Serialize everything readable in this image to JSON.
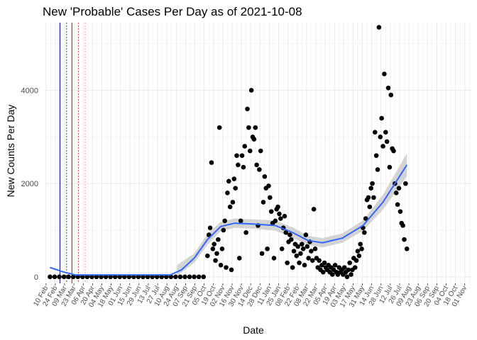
{
  "chart_data": {
    "type": "scatter",
    "title": "New 'Probable' Cases Per Day as of 2021-10-08",
    "xlabel": "Date",
    "ylabel": "New Counts Per Day",
    "xlim": [
      "2020-02-07",
      "2021-11-12"
    ],
    "ylim": [
      -140,
      5450
    ],
    "y_ticks": [
      0,
      2000,
      4000
    ],
    "x_ticks": [
      {
        "date": "2020-02-10",
        "label": "10 Feb"
      },
      {
        "date": "2020-02-24",
        "label": "24 Feb"
      },
      {
        "date": "2020-03-09",
        "label": "09 Mar"
      },
      {
        "date": "2020-03-23",
        "label": "23 Mar"
      },
      {
        "date": "2020-04-06",
        "label": "06 Apr"
      },
      {
        "date": "2020-04-20",
        "label": "20 Apr"
      },
      {
        "date": "2020-05-04",
        "label": "04 May"
      },
      {
        "date": "2020-05-18",
        "label": "18 May"
      },
      {
        "date": "2020-06-01",
        "label": "01 Jun"
      },
      {
        "date": "2020-06-15",
        "label": "15 Jun"
      },
      {
        "date": "2020-06-29",
        "label": "29 Jun"
      },
      {
        "date": "2020-07-13",
        "label": "13 Jul"
      },
      {
        "date": "2020-07-27",
        "label": "27 Jul"
      },
      {
        "date": "2020-08-10",
        "label": "10 Aug"
      },
      {
        "date": "2020-08-24",
        "label": "24 Aug"
      },
      {
        "date": "2020-09-07",
        "label": "07 Sep"
      },
      {
        "date": "2020-09-21",
        "label": "21 Sep"
      },
      {
        "date": "2020-10-05",
        "label": "05 Oct"
      },
      {
        "date": "2020-10-19",
        "label": "19 Oct"
      },
      {
        "date": "2020-11-02",
        "label": "02 Nov"
      },
      {
        "date": "2020-11-16",
        "label": "16 Nov"
      },
      {
        "date": "2020-11-30",
        "label": "30 Nov"
      },
      {
        "date": "2020-12-14",
        "label": "14 Dec"
      },
      {
        "date": "2020-12-28",
        "label": "28 Dec"
      },
      {
        "date": "2021-01-11",
        "label": "11 Jan"
      },
      {
        "date": "2021-01-25",
        "label": "25 Jan"
      },
      {
        "date": "2021-02-08",
        "label": "08 Feb"
      },
      {
        "date": "2021-02-22",
        "label": "22 Feb"
      },
      {
        "date": "2021-03-08",
        "label": "08 Mar"
      },
      {
        "date": "2021-03-22",
        "label": "22 Mar"
      },
      {
        "date": "2021-04-05",
        "label": "05 Apr"
      },
      {
        "date": "2021-04-19",
        "label": "19 Apr"
      },
      {
        "date": "2021-05-03",
        "label": "03 May"
      },
      {
        "date": "2021-05-17",
        "label": "17 May"
      },
      {
        "date": "2021-05-31",
        "label": "31 May"
      },
      {
        "date": "2021-06-14",
        "label": "14 Jun"
      },
      {
        "date": "2021-06-28",
        "label": "28 Jun"
      },
      {
        "date": "2021-07-12",
        "label": "12 Jul"
      },
      {
        "date": "2021-07-26",
        "label": "26 Jul"
      },
      {
        "date": "2021-08-09",
        "label": "09 Aug"
      },
      {
        "date": "2021-08-23",
        "label": "23 Aug"
      },
      {
        "date": "2021-09-06",
        "label": "06 Sep"
      },
      {
        "date": "2021-09-20",
        "label": "20 Sep"
      },
      {
        "date": "2021-10-04",
        "label": "04 Oct"
      },
      {
        "date": "2021-10-18",
        "label": "18 Oct"
      },
      {
        "date": "2021-11-01",
        "label": "01 Nov"
      }
    ],
    "vertical_lines": [
      {
        "date": "2020-03-02",
        "color": "#00008b",
        "style": "solid"
      },
      {
        "date": "2020-03-12",
        "color": "#00008b",
        "style": "dotted"
      },
      {
        "date": "2020-03-20",
        "color": "#cc0000",
        "style": "solid"
      },
      {
        "date": "2020-03-30",
        "color": "#cc0000",
        "style": "dotted"
      },
      {
        "date": "2020-04-09",
        "color": "#f08080",
        "style": "dotted"
      }
    ],
    "points": [
      [
        "2020-02-16",
        0
      ],
      [
        "2020-02-23",
        0
      ],
      [
        "2020-03-01",
        0
      ],
      [
        "2020-03-08",
        0
      ],
      [
        "2020-03-15",
        0
      ],
      [
        "2020-03-22",
        0
      ],
      [
        "2020-03-29",
        0
      ],
      [
        "2020-04-05",
        0
      ],
      [
        "2020-04-12",
        0
      ],
      [
        "2020-04-19",
        0
      ],
      [
        "2020-04-26",
        0
      ],
      [
        "2020-05-03",
        0
      ],
      [
        "2020-05-10",
        0
      ],
      [
        "2020-05-17",
        0
      ],
      [
        "2020-05-24",
        0
      ],
      [
        "2020-05-31",
        0
      ],
      [
        "2020-06-07",
        0
      ],
      [
        "2020-06-14",
        0
      ],
      [
        "2020-06-21",
        0
      ],
      [
        "2020-06-28",
        0
      ],
      [
        "2020-07-05",
        0
      ],
      [
        "2020-07-12",
        0
      ],
      [
        "2020-07-19",
        0
      ],
      [
        "2020-07-26",
        0
      ],
      [
        "2020-08-02",
        0
      ],
      [
        "2020-08-09",
        0
      ],
      [
        "2020-08-16",
        0
      ],
      [
        "2020-08-23",
        0
      ],
      [
        "2020-08-30",
        0
      ],
      [
        "2020-09-06",
        0
      ],
      [
        "2020-09-13",
        0
      ],
      [
        "2020-09-20",
        0
      ],
      [
        "2020-09-27",
        0
      ],
      [
        "2020-10-04",
        0
      ],
      [
        "2020-10-10",
        450
      ],
      [
        "2020-10-12",
        900
      ],
      [
        "2020-10-14",
        1050
      ],
      [
        "2020-10-16",
        2450
      ],
      [
        "2020-10-18",
        600
      ],
      [
        "2020-10-20",
        700
      ],
      [
        "2020-10-22",
        350
      ],
      [
        "2020-10-24",
        500
      ],
      [
        "2020-10-26",
        800
      ],
      [
        "2020-10-28",
        3200
      ],
      [
        "2020-10-30",
        250
      ],
      [
        "2020-11-01",
        600
      ],
      [
        "2020-11-03",
        1000
      ],
      [
        "2020-11-05",
        1200
      ],
      [
        "2020-11-07",
        200
      ],
      [
        "2020-11-09",
        1800
      ],
      [
        "2020-11-11",
        2050
      ],
      [
        "2020-11-13",
        1500
      ],
      [
        "2020-11-15",
        150
      ],
      [
        "2020-11-17",
        1600
      ],
      [
        "2020-11-19",
        2100
      ],
      [
        "2020-11-21",
        1900
      ],
      [
        "2020-11-23",
        2600
      ],
      [
        "2020-11-25",
        2400
      ],
      [
        "2020-11-27",
        400
      ],
      [
        "2020-11-29",
        1200
      ],
      [
        "2020-12-01",
        2600
      ],
      [
        "2020-12-03",
        2350
      ],
      [
        "2020-12-05",
        2800
      ],
      [
        "2020-12-07",
        950
      ],
      [
        "2020-12-09",
        3600
      ],
      [
        "2020-12-11",
        3200
      ],
      [
        "2020-12-13",
        2700
      ],
      [
        "2020-12-15",
        4000
      ],
      [
        "2020-12-17",
        3000
      ],
      [
        "2020-12-19",
        2950
      ],
      [
        "2020-12-21",
        3200
      ],
      [
        "2020-12-23",
        2400
      ],
      [
        "2020-12-25",
        1100
      ],
      [
        "2020-12-27",
        2300
      ],
      [
        "2020-12-29",
        2700
      ],
      [
        "2020-12-31",
        500
      ],
      [
        "2021-01-02",
        1600
      ],
      [
        "2021-01-04",
        2150
      ],
      [
        "2021-01-06",
        1900
      ],
      [
        "2021-01-08",
        600
      ],
      [
        "2021-01-10",
        1950
      ],
      [
        "2021-01-12",
        1700
      ],
      [
        "2021-01-14",
        1400
      ],
      [
        "2021-01-16",
        1150
      ],
      [
        "2021-01-18",
        400
      ],
      [
        "2021-01-20",
        1200
      ],
      [
        "2021-01-22",
        1450
      ],
      [
        "2021-01-24",
        1500
      ],
      [
        "2021-01-26",
        1350
      ],
      [
        "2021-01-28",
        1250
      ],
      [
        "2021-01-30",
        600
      ],
      [
        "2021-02-01",
        1050
      ],
      [
        "2021-02-03",
        1300
      ],
      [
        "2021-02-05",
        950
      ],
      [
        "2021-02-07",
        300
      ],
      [
        "2021-02-09",
        750
      ],
      [
        "2021-02-11",
        900
      ],
      [
        "2021-02-13",
        800
      ],
      [
        "2021-02-15",
        200
      ],
      [
        "2021-02-17",
        550
      ],
      [
        "2021-02-19",
        700
      ],
      [
        "2021-02-21",
        450
      ],
      [
        "2021-02-23",
        650
      ],
      [
        "2021-02-25",
        300
      ],
      [
        "2021-02-27",
        500
      ],
      [
        "2021-03-01",
        700
      ],
      [
        "2021-03-03",
        600
      ],
      [
        "2021-03-05",
        250
      ],
      [
        "2021-03-07",
        900
      ],
      [
        "2021-03-09",
        650
      ],
      [
        "2021-03-11",
        400
      ],
      [
        "2021-03-13",
        750
      ],
      [
        "2021-03-15",
        550
      ],
      [
        "2021-03-17",
        350
      ],
      [
        "2021-03-19",
        1450
      ],
      [
        "2021-03-21",
        600
      ],
      [
        "2021-03-23",
        400
      ],
      [
        "2021-03-25",
        200
      ],
      [
        "2021-03-27",
        350
      ],
      [
        "2021-03-29",
        150
      ],
      [
        "2021-03-31",
        250
      ],
      [
        "2021-04-02",
        100
      ],
      [
        "2021-04-04",
        300
      ],
      [
        "2021-04-06",
        200
      ],
      [
        "2021-04-08",
        150
      ],
      [
        "2021-04-10",
        250
      ],
      [
        "2021-04-12",
        100
      ],
      [
        "2021-04-14",
        200
      ],
      [
        "2021-04-16",
        50
      ],
      [
        "2021-04-18",
        150
      ],
      [
        "2021-04-20",
        250
      ],
      [
        "2021-04-22",
        100
      ],
      [
        "2021-04-24",
        50
      ],
      [
        "2021-04-26",
        200
      ],
      [
        "2021-04-28",
        100
      ],
      [
        "2021-04-30",
        150
      ],
      [
        "2021-05-02",
        50
      ],
      [
        "2021-05-04",
        200
      ],
      [
        "2021-05-06",
        100
      ],
      [
        "2021-05-08",
        0
      ],
      [
        "2021-05-10",
        150
      ],
      [
        "2021-05-12",
        300
      ],
      [
        "2021-05-14",
        50
      ],
      [
        "2021-05-16",
        150
      ],
      [
        "2021-05-18",
        400
      ],
      [
        "2021-05-20",
        200
      ],
      [
        "2021-05-22",
        350
      ],
      [
        "2021-05-24",
        550
      ],
      [
        "2021-05-26",
        450
      ],
      [
        "2021-05-28",
        700
      ],
      [
        "2021-05-30",
        600
      ],
      [
        "2021-06-01",
        1050
      ],
      [
        "2021-06-03",
        950
      ],
      [
        "2021-06-05",
        1250
      ],
      [
        "2021-06-07",
        1650
      ],
      [
        "2021-06-09",
        1700
      ],
      [
        "2021-06-11",
        1500
      ],
      [
        "2021-06-13",
        1900
      ],
      [
        "2021-06-15",
        2000
      ],
      [
        "2021-06-17",
        1700
      ],
      [
        "2021-06-19",
        3100
      ],
      [
        "2021-06-21",
        2600
      ],
      [
        "2021-06-23",
        2300
      ],
      [
        "2021-06-25",
        5350
      ],
      [
        "2021-06-27",
        3000
      ],
      [
        "2021-06-29",
        3400
      ],
      [
        "2021-07-01",
        2800
      ],
      [
        "2021-07-03",
        4350
      ],
      [
        "2021-07-05",
        3100
      ],
      [
        "2021-07-07",
        2900
      ],
      [
        "2021-07-09",
        4050
      ],
      [
        "2021-07-11",
        2350
      ],
      [
        "2021-07-13",
        3900
      ],
      [
        "2021-07-15",
        2750
      ],
      [
        "2021-07-17",
        2700
      ],
      [
        "2021-07-19",
        2000
      ],
      [
        "2021-07-21",
        1800
      ],
      [
        "2021-07-23",
        1550
      ],
      [
        "2021-07-25",
        1900
      ],
      [
        "2021-07-27",
        1400
      ],
      [
        "2021-07-29",
        1150
      ],
      [
        "2021-07-31",
        1100
      ],
      [
        "2021-08-02",
        800
      ],
      [
        "2021-08-04",
        2000
      ],
      [
        "2021-08-06",
        600
      ]
    ],
    "smooth": [
      [
        "2020-02-16",
        200
      ],
      [
        "2020-03-08",
        100
      ],
      [
        "2020-03-25",
        40
      ],
      [
        "2020-06-01",
        40
      ],
      [
        "2020-08-15",
        40
      ],
      [
        "2020-09-01",
        150
      ],
      [
        "2020-09-20",
        400
      ],
      [
        "2020-10-10",
        800
      ],
      [
        "2020-10-30",
        1080
      ],
      [
        "2020-11-20",
        1150
      ],
      [
        "2020-12-20",
        1130
      ],
      [
        "2021-01-20",
        1100
      ],
      [
        "2021-02-15",
        950
      ],
      [
        "2021-03-10",
        780
      ],
      [
        "2021-04-01",
        730
      ],
      [
        "2021-05-01",
        830
      ],
      [
        "2021-06-01",
        1100
      ],
      [
        "2021-07-01",
        1600
      ],
      [
        "2021-08-06",
        2400
      ]
    ],
    "smooth_band": [
      [
        "2020-08-25",
        250,
        20
      ],
      [
        "2020-09-20",
        500,
        300
      ],
      [
        "2020-10-10",
        920,
        690
      ],
      [
        "2020-10-30",
        1180,
        980
      ],
      [
        "2020-11-20",
        1250,
        1050
      ],
      [
        "2020-12-20",
        1230,
        1030
      ],
      [
        "2021-01-20",
        1210,
        990
      ],
      [
        "2021-02-15",
        1060,
        840
      ],
      [
        "2021-03-10",
        880,
        680
      ],
      [
        "2021-04-01",
        830,
        630
      ],
      [
        "2021-05-01",
        930,
        730
      ],
      [
        "2021-06-01",
        1210,
        990
      ],
      [
        "2021-07-01",
        1760,
        1440
      ],
      [
        "2021-08-06",
        2650,
        2150
      ]
    ],
    "grid": true,
    "colors": {
      "points": "#000000",
      "smooth_line": "#3366ff",
      "smooth_band": "#cccccc",
      "gridline": "#ebebeb"
    }
  }
}
